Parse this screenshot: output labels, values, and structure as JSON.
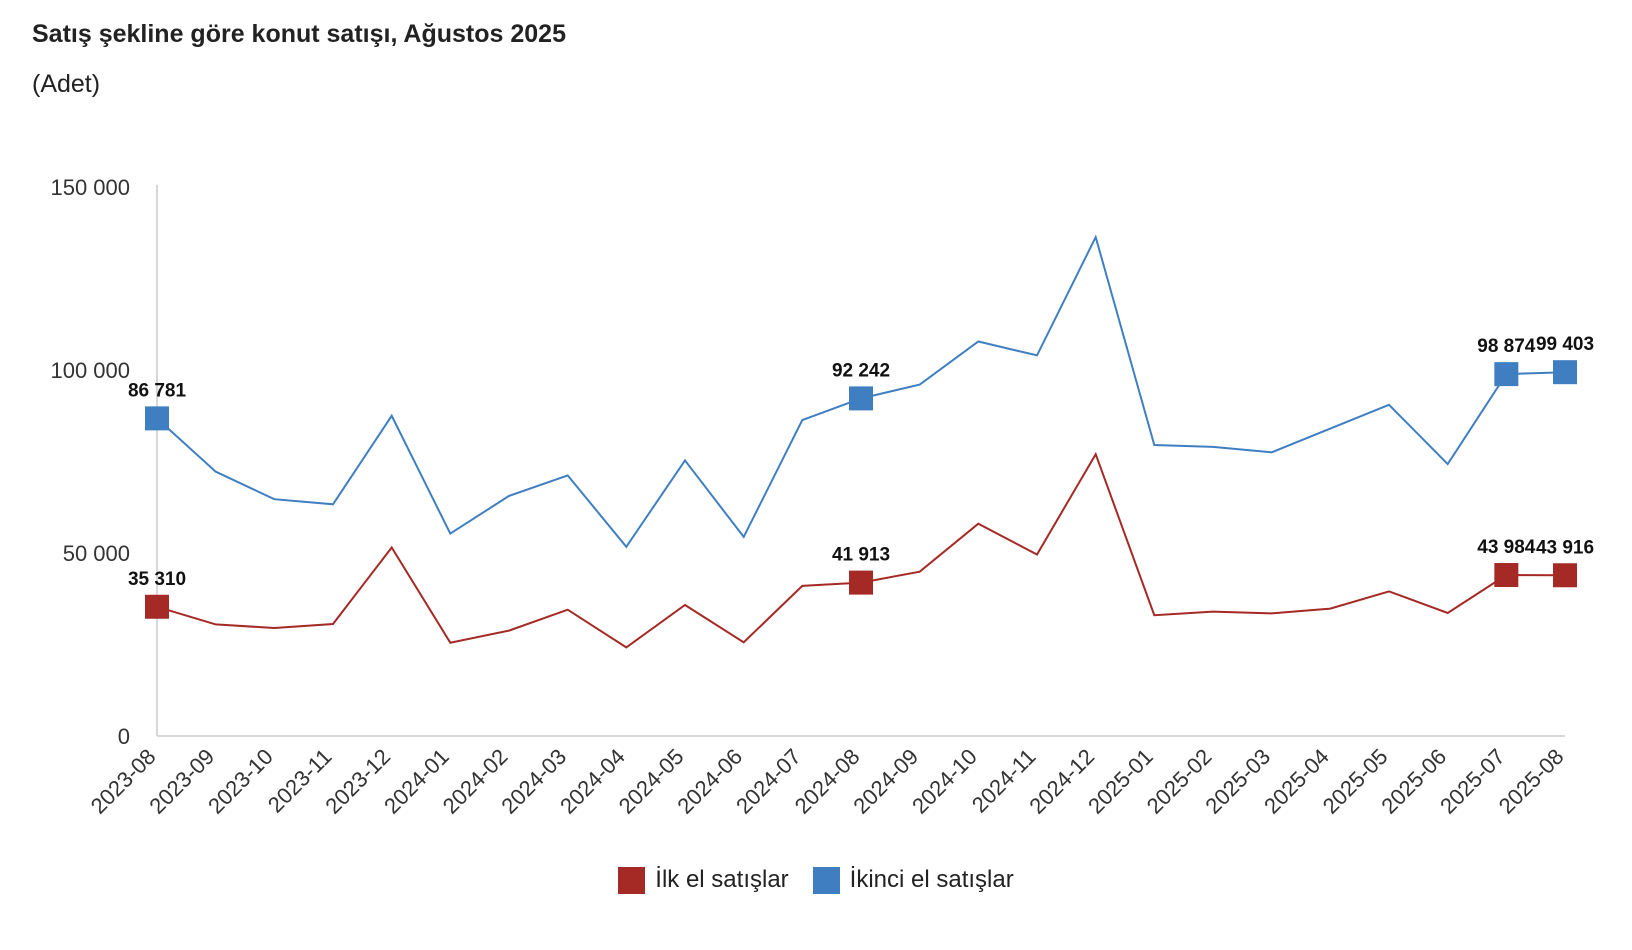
{
  "title": "Satış şekline göre konut satışı, Ağustos 2025",
  "subtitle": "(Adet)",
  "colors": {
    "ilk": "#a52a25",
    "ikinci": "#3f7fc1"
  },
  "chart_data": {
    "type": "line",
    "categories": [
      "2023-08",
      "2023-09",
      "2023-10",
      "2023-11",
      "2023-12",
      "2024-01",
      "2024-02",
      "2024-03",
      "2024-04",
      "2024-05",
      "2024-06",
      "2024-07",
      "2024-08",
      "2024-09",
      "2024-10",
      "2024-11",
      "2024-12",
      "2025-01",
      "2025-02",
      "2025-03",
      "2025-04",
      "2025-05",
      "2025-06",
      "2025-07",
      "2025-08"
    ],
    "y_ticks": [
      {
        "value": 0,
        "label": "0"
      },
      {
        "value": 50000,
        "label": "50 000"
      },
      {
        "value": 100000,
        "label": "100 000"
      },
      {
        "value": 150000,
        "label": "150 000"
      }
    ],
    "ylim": [
      0,
      150000
    ],
    "series": [
      {
        "name": "İlk el satışlar",
        "color": "#a52a25",
        "values": [
          35310,
          30500,
          29500,
          30600,
          51500,
          25500,
          28800,
          34500,
          24200,
          35800,
          25600,
          41000,
          41913,
          44900,
          58000,
          49600,
          77000,
          33000,
          34000,
          33500,
          34800,
          39500,
          33600,
          43984,
          43916
        ],
        "labels": [
          {
            "index": 0,
            "text": "35 310"
          },
          {
            "index": 12,
            "text": "41 913"
          },
          {
            "index": 23,
            "text": "43 984"
          },
          {
            "index": 24,
            "text": "43 916"
          }
        ]
      },
      {
        "name": "İkinci el satışlar",
        "color": "#3f7fc1",
        "values": [
          86781,
          72200,
          64700,
          63300,
          87500,
          55300,
          65600,
          71200,
          51700,
          75300,
          54400,
          86300,
          92242,
          96000,
          107800,
          104000,
          136300,
          79500,
          79000,
          77500,
          84000,
          90500,
          74300,
          98874,
          99403
        ],
        "labels": [
          {
            "index": 0,
            "text": "86 781"
          },
          {
            "index": 12,
            "text": "92 242"
          },
          {
            "index": 23,
            "text": "98 874"
          },
          {
            "index": 24,
            "text": "99 403"
          }
        ]
      }
    ]
  }
}
